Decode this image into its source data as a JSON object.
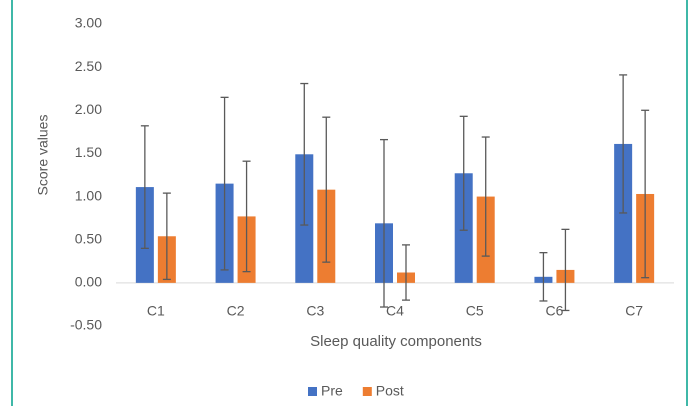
{
  "chart_data": {
    "type": "bar",
    "y_label": "Score values",
    "x_label": "Sleep quality components",
    "categories": [
      "C1",
      "C2",
      "C3",
      "C4",
      "C5",
      "C6",
      "C7"
    ],
    "series": [
      {
        "name": "Pre",
        "color": "#4472c4",
        "values": [
          1.11,
          1.15,
          1.49,
          0.69,
          1.27,
          0.07,
          1.61
        ],
        "errors": [
          0.71,
          1.0,
          0.82,
          0.97,
          0.66,
          0.28,
          0.8
        ]
      },
      {
        "name": "Post",
        "color": "#ed7d31",
        "values": [
          0.54,
          0.77,
          1.08,
          0.12,
          1.0,
          0.15,
          1.03
        ],
        "errors": [
          0.5,
          0.64,
          0.84,
          0.32,
          0.69,
          0.47,
          0.97
        ]
      }
    ],
    "ylim": [
      -0.5,
      3.0
    ],
    "yticks": [
      {
        "value": -0.5,
        "label": "-0.50"
      },
      {
        "value": 0,
        "label": "0.00"
      },
      {
        "value": 0.5,
        "label": "0.50"
      },
      {
        "value": 1,
        "label": "1.00"
      },
      {
        "value": 1.5,
        "label": "1.50"
      },
      {
        "value": 2,
        "label": "2.00"
      },
      {
        "value": 2.5,
        "label": "2.50"
      },
      {
        "value": 3,
        "label": "3.00"
      }
    ],
    "legend": "bottom"
  }
}
